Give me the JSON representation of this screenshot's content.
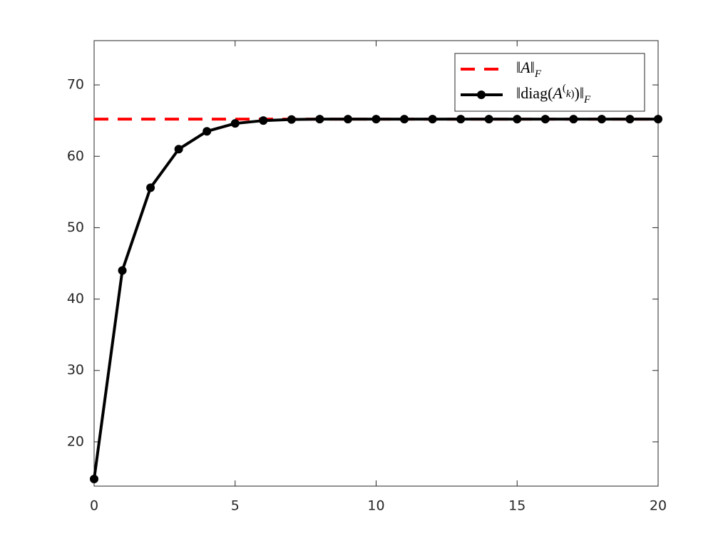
{
  "chart_data": {
    "type": "line",
    "series": [
      {
        "name": "‖A‖_F",
        "color": "#ff0000",
        "dash": true,
        "marker": false,
        "x": [
          0,
          20
        ],
        "values": [
          65.2,
          65.2
        ]
      },
      {
        "name": "‖diag(A^(k))‖_F",
        "color": "#000000",
        "dash": false,
        "marker": true,
        "x": [
          0,
          1,
          2,
          3,
          4,
          5,
          6,
          7,
          8,
          9,
          10,
          11,
          12,
          13,
          14,
          15,
          16,
          17,
          18,
          19,
          20
        ],
        "values": [
          14.8,
          44.0,
          55.6,
          61.0,
          63.5,
          64.6,
          65.0,
          65.15,
          65.2,
          65.2,
          65.2,
          65.2,
          65.2,
          65.2,
          65.2,
          65.2,
          65.2,
          65.2,
          65.2,
          65.2,
          65.2
        ]
      }
    ],
    "xlim": [
      0,
      20
    ],
    "xticks": [
      0,
      5,
      10,
      15,
      20
    ],
    "ylim": [
      13.8,
      76.2
    ],
    "yticks": [
      20,
      30,
      40,
      50,
      60,
      70
    ],
    "grid": false,
    "legend": "top-right"
  }
}
